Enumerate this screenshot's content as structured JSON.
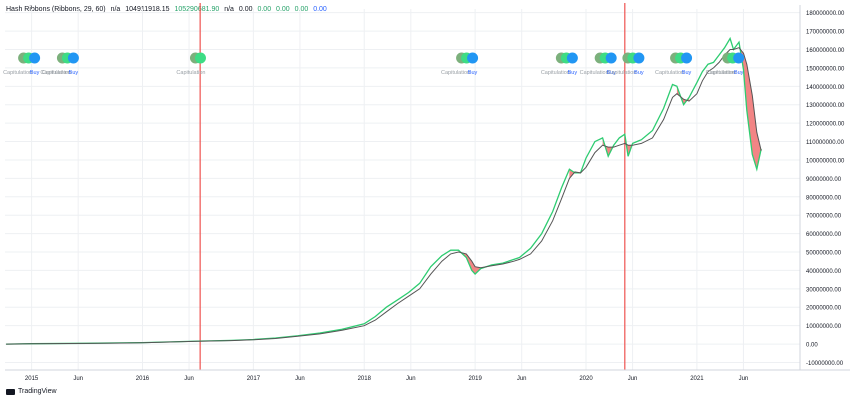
{
  "legend": {
    "study": "Hash Ribbons (Ribbons, 29, 60)",
    "na1": "n/a",
    "value1": "104911918.15",
    "value2": "105290681.90",
    "na2": "n/a",
    "z1": "0.00",
    "z2": "0.00",
    "z3": "0.00",
    "z4": "0.00",
    "z5": "0.00",
    "colors": {
      "default": "#131722",
      "value2": "#26a269",
      "zeros": "#26a269",
      "last": "#2962ff"
    }
  },
  "brand": "TradingView",
  "chart_data": {
    "type": "line",
    "title": "",
    "xlabel": "",
    "ylabel": "",
    "x_ticks": [
      "2015",
      "Jun",
      "2016",
      "Jun",
      "2017",
      "Jun",
      "2018",
      "Jun",
      "2019",
      "Jun",
      "2020",
      "Jun",
      "2021",
      "Jun"
    ],
    "x_tick_dates": [
      2015.0,
      2015.42,
      2016.0,
      2016.42,
      2017.0,
      2017.42,
      2018.0,
      2018.42,
      2019.0,
      2019.42,
      2020.0,
      2020.42,
      2021.0,
      2021.42
    ],
    "xlim": [
      2014.76,
      2021.93
    ],
    "ylim": [
      -13000000,
      182000000
    ],
    "y_ticks": [
      "180000000.00",
      "170000000.00",
      "160000000.00",
      "150000000.00",
      "140000000.00",
      "130000000.00",
      "120000000.00",
      "110000000.00",
      "100000000.00",
      "90000000.00",
      "80000000.00",
      "70000000.00",
      "60000000.00",
      "50000000.00",
      "40000000.00",
      "30000000.00",
      "20000000.00",
      "10000000.00",
      "0.00",
      "-10000000.00"
    ],
    "y_tick_values": [
      180000000,
      170000000,
      160000000,
      150000000,
      140000000,
      130000000,
      120000000,
      110000000,
      100000000,
      90000000,
      80000000,
      70000000,
      60000000,
      50000000,
      40000000,
      30000000,
      20000000,
      10000000,
      0,
      -10000000
    ],
    "grid": true,
    "series": [
      {
        "color": "#2ecc71",
        "points": [
          [
            2014.77,
            0
          ],
          [
            2015.0,
            200000
          ],
          [
            2015.5,
            400000
          ],
          [
            2016.0,
            800000
          ],
          [
            2016.5,
            1600000
          ],
          [
            2016.8,
            2000000
          ],
          [
            2017.0,
            2500000
          ],
          [
            2017.2,
            3300000
          ],
          [
            2017.4,
            4500000
          ],
          [
            2017.6,
            6000000
          ],
          [
            2017.8,
            8000000
          ],
          [
            2018.0,
            11000000
          ],
          [
            2018.1,
            15000000
          ],
          [
            2018.2,
            20000000
          ],
          [
            2018.3,
            24000000
          ],
          [
            2018.4,
            28000000
          ],
          [
            2018.5,
            33000000
          ],
          [
            2018.6,
            42000000
          ],
          [
            2018.7,
            48000000
          ],
          [
            2018.78,
            51000000
          ],
          [
            2018.85,
            51000000
          ],
          [
            2018.92,
            47000000
          ],
          [
            2018.97,
            40000000
          ],
          [
            2019.0,
            38000000
          ],
          [
            2019.05,
            41000000
          ],
          [
            2019.15,
            43000000
          ],
          [
            2019.25,
            44000000
          ],
          [
            2019.35,
            46000000
          ],
          [
            2019.4,
            47000000
          ],
          [
            2019.5,
            52000000
          ],
          [
            2019.6,
            60000000
          ],
          [
            2019.7,
            72000000
          ],
          [
            2019.78,
            85000000
          ],
          [
            2019.85,
            95000000
          ],
          [
            2019.9,
            93000000
          ],
          [
            2019.95,
            93000000
          ],
          [
            2020.0,
            101000000
          ],
          [
            2020.08,
            110000000
          ],
          [
            2020.15,
            112000000
          ],
          [
            2020.2,
            102000000
          ],
          [
            2020.25,
            108000000
          ],
          [
            2020.3,
            112000000
          ],
          [
            2020.35,
            114000000
          ],
          [
            2020.38,
            102000000
          ],
          [
            2020.42,
            109000000
          ],
          [
            2020.5,
            111000000
          ],
          [
            2020.6,
            116000000
          ],
          [
            2020.7,
            128000000
          ],
          [
            2020.78,
            141000000
          ],
          [
            2020.82,
            140000000
          ],
          [
            2020.88,
            130000000
          ],
          [
            2020.93,
            134000000
          ],
          [
            2021.0,
            142000000
          ],
          [
            2021.05,
            148000000
          ],
          [
            2021.1,
            152000000
          ],
          [
            2021.15,
            153000000
          ],
          [
            2021.2,
            157000000
          ],
          [
            2021.25,
            161000000
          ],
          [
            2021.3,
            166000000
          ],
          [
            2021.33,
            160000000
          ],
          [
            2021.38,
            164000000
          ],
          [
            2021.42,
            149000000
          ],
          [
            2021.45,
            127000000
          ],
          [
            2021.5,
            103000000
          ],
          [
            2021.54,
            95000000
          ],
          [
            2021.58,
            106000000
          ]
        ]
      },
      {
        "color": "#555555",
        "points": [
          [
            2014.77,
            0
          ],
          [
            2015.0,
            150000
          ],
          [
            2015.5,
            350000
          ],
          [
            2016.0,
            700000
          ],
          [
            2016.5,
            1500000
          ],
          [
            2016.8,
            1900000
          ],
          [
            2017.0,
            2300000
          ],
          [
            2017.2,
            3000000
          ],
          [
            2017.4,
            4200000
          ],
          [
            2017.6,
            5500000
          ],
          [
            2017.8,
            7500000
          ],
          [
            2018.0,
            10000000
          ],
          [
            2018.1,
            13000000
          ],
          [
            2018.2,
            17500000
          ],
          [
            2018.3,
            22000000
          ],
          [
            2018.4,
            26000000
          ],
          [
            2018.5,
            30000000
          ],
          [
            2018.6,
            38000000
          ],
          [
            2018.7,
            45000000
          ],
          [
            2018.78,
            49000000
          ],
          [
            2018.85,
            50000000
          ],
          [
            2018.92,
            49000000
          ],
          [
            2018.97,
            45000000
          ],
          [
            2019.0,
            42000000
          ],
          [
            2019.05,
            41500000
          ],
          [
            2019.15,
            42500000
          ],
          [
            2019.25,
            43500000
          ],
          [
            2019.35,
            45000000
          ],
          [
            2019.4,
            46000000
          ],
          [
            2019.5,
            49000000
          ],
          [
            2019.6,
            56000000
          ],
          [
            2019.7,
            67000000
          ],
          [
            2019.78,
            79000000
          ],
          [
            2019.85,
            90000000
          ],
          [
            2019.9,
            93500000
          ],
          [
            2019.95,
            93000000
          ],
          [
            2020.0,
            96000000
          ],
          [
            2020.08,
            104000000
          ],
          [
            2020.15,
            108000000
          ],
          [
            2020.2,
            107000000
          ],
          [
            2020.25,
            107000000
          ],
          [
            2020.3,
            108000000
          ],
          [
            2020.35,
            109000000
          ],
          [
            2020.38,
            108000000
          ],
          [
            2020.42,
            108000000
          ],
          [
            2020.5,
            109000000
          ],
          [
            2020.6,
            112000000
          ],
          [
            2020.7,
            122000000
          ],
          [
            2020.78,
            134000000
          ],
          [
            2020.82,
            136000000
          ],
          [
            2020.88,
            133000000
          ],
          [
            2020.93,
            132000000
          ],
          [
            2021.0,
            136000000
          ],
          [
            2021.05,
            143000000
          ],
          [
            2021.1,
            148000000
          ],
          [
            2021.15,
            150000000
          ],
          [
            2021.2,
            153000000
          ],
          [
            2021.25,
            157000000
          ],
          [
            2021.3,
            160000000
          ],
          [
            2021.33,
            160000000
          ],
          [
            2021.38,
            161000000
          ],
          [
            2021.42,
            158000000
          ],
          [
            2021.45,
            152000000
          ],
          [
            2021.5,
            135000000
          ],
          [
            2021.54,
            115000000
          ],
          [
            2021.58,
            105000000
          ]
        ]
      }
    ],
    "red_fill_color": "#f07070",
    "vertical_lines": [
      {
        "x": 2016.52,
        "color": "#ef5350"
      },
      {
        "x": 2020.35,
        "color": "#ef5350"
      }
    ],
    "signal_markers": [
      {
        "x": 2015.0,
        "labels": [
          "Capitulation",
          "Buy"
        ]
      },
      {
        "x": 2015.35,
        "labels": [
          "Capitulation",
          "Capitulation",
          "Buy"
        ]
      },
      {
        "x": 2016.55,
        "labels": [
          "Capitulation"
        ]
      },
      {
        "x": 2018.95,
        "labels": [
          "Capitulation",
          "Buy"
        ]
      },
      {
        "x": 2019.85,
        "labels": [
          "Capitulation",
          "Buy"
        ]
      },
      {
        "x": 2020.2,
        "labels": [
          "Capitulation",
          "Buy"
        ]
      },
      {
        "x": 2020.45,
        "labels": [
          "Capitulation",
          "Buy"
        ]
      },
      {
        "x": 2020.88,
        "labels": [
          "Capitulation",
          "Buy"
        ]
      },
      {
        "x": 2021.35,
        "labels": [
          "Capitulation",
          "Capitulation",
          "Buy"
        ]
      }
    ]
  }
}
